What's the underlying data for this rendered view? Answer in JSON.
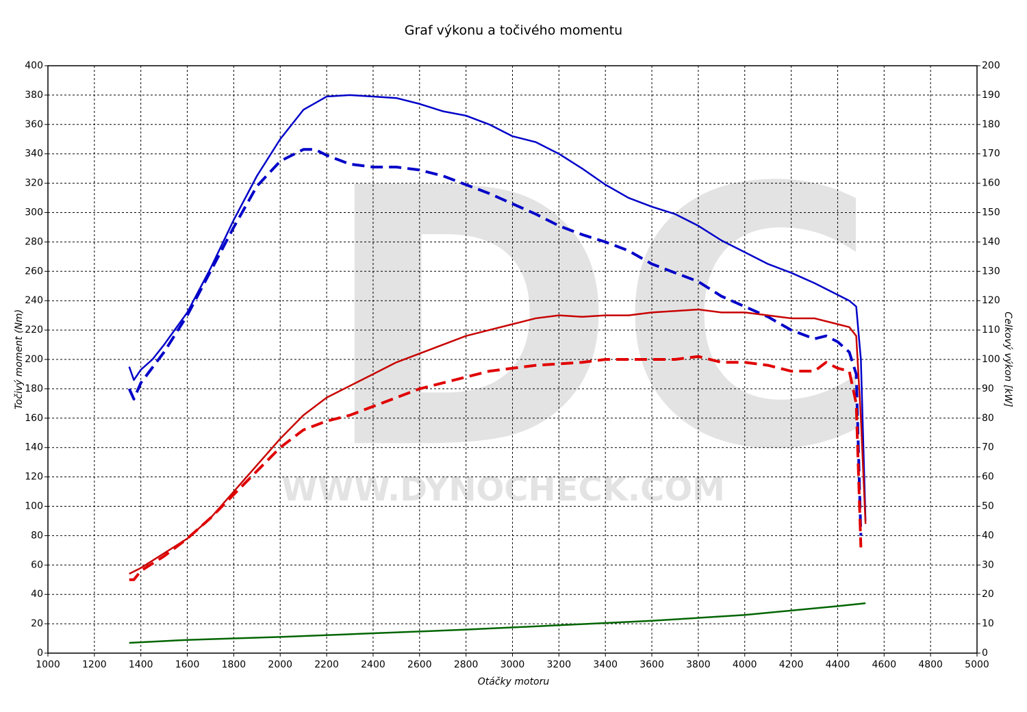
{
  "chart_data": {
    "type": "line",
    "title": "Graf výkonu a točivého momentu",
    "xlabel": "Otáčky motoru",
    "ylabel": "Točivý moment (Nm)",
    "y2label": "Celkový výkon [kW]",
    "watermark": [
      "DC",
      "WWW.DYNOCHECK.COM"
    ],
    "xlim": [
      1000,
      5000
    ],
    "xticks": [
      1000,
      1200,
      1400,
      1600,
      1800,
      2000,
      2200,
      2400,
      2600,
      2800,
      3000,
      3200,
      3400,
      3600,
      3800,
      4000,
      4200,
      4400,
      4600,
      4800,
      5000
    ],
    "ylim": [
      0,
      400
    ],
    "yticks": [
      0,
      20,
      40,
      60,
      80,
      100,
      120,
      140,
      160,
      180,
      200,
      220,
      240,
      260,
      280,
      300,
      320,
      340,
      360,
      380,
      400
    ],
    "y2lim": [
      0,
      200
    ],
    "y2ticks": [
      0,
      10,
      20,
      30,
      40,
      50,
      60,
      70,
      80,
      90,
      100,
      110,
      120,
      130,
      140,
      150,
      160,
      170,
      180,
      190,
      200
    ],
    "grid": true,
    "series": [
      {
        "color": "#0000c8",
        "style": "solid",
        "x": [
          1350,
          1370,
          1400,
          1450,
          1500,
          1600,
          1700,
          1800,
          1900,
          2000,
          2100,
          2200,
          2300,
          2400,
          2500,
          2600,
          2700,
          2800,
          2900,
          3000,
          3100,
          3200,
          3300,
          3400,
          3500,
          3600,
          3700,
          3800,
          3900,
          4000,
          4100,
          4200,
          4300,
          4400,
          4450,
          4480,
          4500,
          4520
        ],
        "values": [
          195,
          186,
          193,
          200,
          210,
          232,
          262,
          295,
          325,
          350,
          370,
          379,
          380,
          379,
          378,
          374,
          369,
          366,
          360,
          352,
          348,
          340,
          330,
          319,
          310,
          304,
          299,
          291,
          281,
          273,
          265,
          259,
          252,
          244,
          240,
          236,
          200,
          90
        ]
      },
      {
        "color": "#0000c8",
        "style": "dashed",
        "x": [
          1350,
          1370,
          1400,
          1500,
          1600,
          1700,
          1800,
          1900,
          2000,
          2100,
          2150,
          2200,
          2300,
          2400,
          2500,
          2600,
          2700,
          2800,
          2900,
          3000,
          3100,
          3200,
          3300,
          3400,
          3500,
          3600,
          3700,
          3800,
          3900,
          4000,
          4100,
          4200,
          4300,
          4350,
          4400,
          4450,
          4480,
          4500
        ],
        "values": [
          180,
          173,
          184,
          205,
          230,
          260,
          290,
          318,
          335,
          343,
          343,
          339,
          333,
          331,
          331,
          329,
          325,
          319,
          313,
          306,
          299,
          291,
          285,
          280,
          274,
          265,
          259,
          253,
          243,
          236,
          229,
          220,
          214,
          216,
          212,
          205,
          190,
          80
        ]
      },
      {
        "color": "#c80000",
        "style": "solid",
        "axis": "y2",
        "x": [
          1350,
          1400,
          1500,
          1600,
          1700,
          1800,
          1900,
          2000,
          2100,
          2200,
          2300,
          2400,
          2500,
          2600,
          2700,
          2800,
          2900,
          3000,
          3100,
          3200,
          3300,
          3400,
          3500,
          3600,
          3700,
          3800,
          3900,
          4000,
          4100,
          4200,
          4300,
          4400,
          4450,
          4480,
          4500,
          4520
        ],
        "values": [
          27,
          29,
          34,
          39,
          46,
          55,
          64,
          73,
          81,
          87,
          91,
          95,
          99,
          102,
          105,
          108,
          110,
          112,
          114,
          115,
          114.5,
          115,
          115,
          116,
          116.5,
          117,
          116,
          116,
          115,
          114,
          114,
          112,
          111,
          108,
          80,
          44
        ]
      },
      {
        "color": "#e00000",
        "style": "dashed",
        "axis": "y2",
        "x": [
          1350,
          1370,
          1400,
          1500,
          1600,
          1700,
          1800,
          1900,
          2000,
          2100,
          2200,
          2300,
          2400,
          2500,
          2600,
          2700,
          2800,
          2900,
          3000,
          3100,
          3200,
          3300,
          3400,
          3500,
          3600,
          3700,
          3800,
          3900,
          4000,
          4100,
          4200,
          4300,
          4350,
          4400,
          4450,
          4480,
          4500
        ],
        "values": [
          25,
          25,
          28,
          33,
          39,
          46,
          54,
          62,
          70,
          76,
          79,
          81,
          84,
          87,
          90,
          92,
          94,
          96,
          97,
          98,
          98.5,
          99,
          100,
          100,
          100,
          100,
          101,
          99,
          99,
          98,
          96,
          96,
          99,
          97,
          96,
          85,
          36
        ]
      },
      {
        "color": "#006400",
        "style": "solid",
        "x": [
          1350,
          1600,
          1800,
          2000,
          2400,
          2800,
          3200,
          3600,
          4000,
          4400,
          4520
        ],
        "values": [
          7,
          9,
          10,
          11,
          13.5,
          16,
          19,
          22,
          26,
          32,
          34
        ]
      }
    ]
  }
}
